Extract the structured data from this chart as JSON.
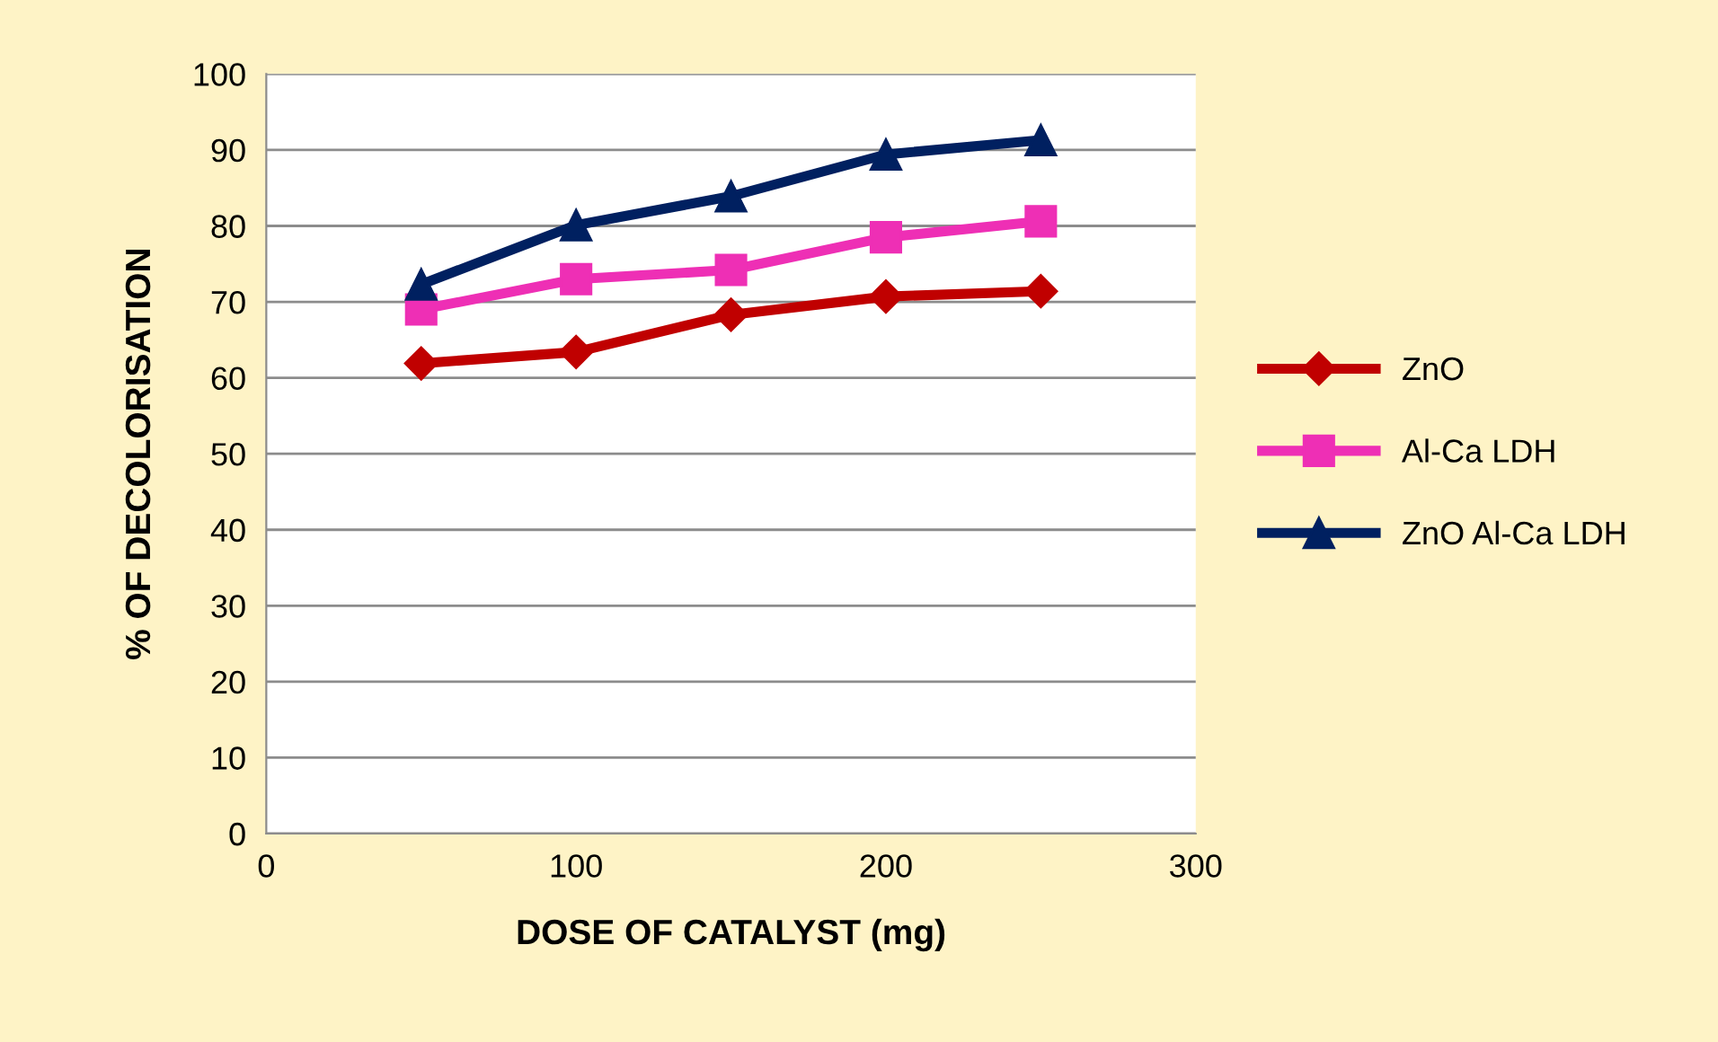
{
  "chart_data": {
    "type": "line",
    "xlabel": "DOSE OF CATALYST (mg)",
    "ylabel": "% OF DECOLORISATION",
    "x": [
      50,
      100,
      150,
      200,
      250
    ],
    "series": [
      {
        "name": "ZnO",
        "color": "#c00000",
        "marker": "diamond",
        "values": [
          61.9,
          63.4,
          68.3,
          70.7,
          71.4
        ]
      },
      {
        "name": "Al-Ca LDH",
        "color": "#ee2fb5",
        "marker": "square",
        "values": [
          69.0,
          73.0,
          74.2,
          78.5,
          80.6
        ]
      },
      {
        "name": "ZnO Al-Ca LDH",
        "color": "#002060",
        "marker": "triangle",
        "values": [
          72.3,
          80.1,
          83.9,
          89.4,
          91.3
        ]
      }
    ],
    "xlim": [
      0,
      300
    ],
    "xticks": [
      0,
      100,
      200,
      300
    ],
    "ylim": [
      0,
      100
    ],
    "yticks": [
      0,
      10,
      20,
      30,
      40,
      50,
      60,
      70,
      80,
      90,
      100
    ],
    "grid": "y",
    "legend": "right"
  }
}
